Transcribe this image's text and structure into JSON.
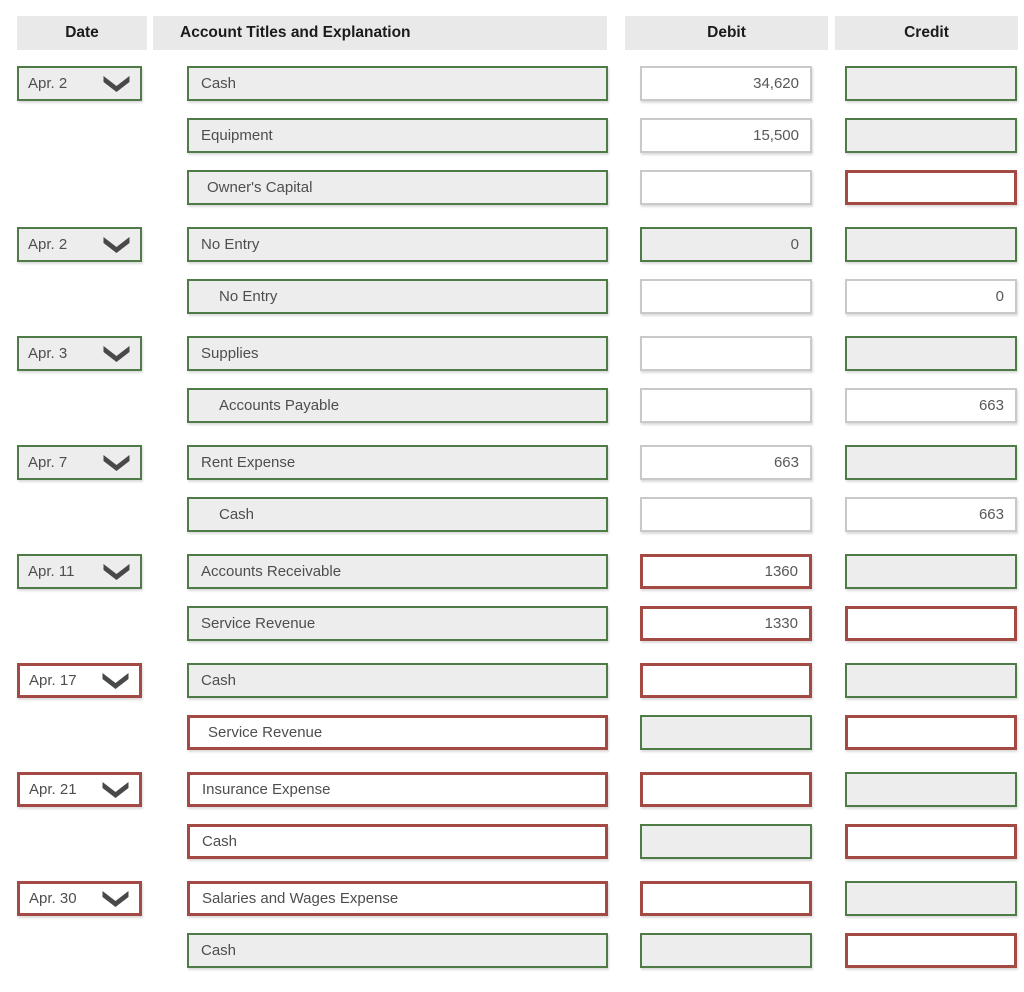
{
  "colors": {
    "correct_green": "#4f7b46",
    "wrong_red": "#a34a45",
    "neutral_border_gray": "#c9c9c9",
    "field_background_gray": "#ededed",
    "header_background": "#e9e9e9",
    "text": "#4e4e4e",
    "header_text": "#1b1b1b"
  },
  "header": {
    "columns": [
      {
        "id": "date",
        "label": "Date"
      },
      {
        "id": "account",
        "label": "Account Titles and Explanation"
      },
      {
        "id": "debit",
        "label": "Debit"
      },
      {
        "id": "credit",
        "label": "Credit"
      }
    ]
  },
  "icons": {
    "date_dropdown": "chevron-down-icon"
  },
  "legend_note_states": {
    "correct": "green border, gray background",
    "wrong": "red border, white background",
    "neutral": "gray border, white background"
  },
  "rows": [
    {
      "date": {
        "label": "Apr. 2",
        "state": "correct"
      },
      "account": {
        "label": "Cash",
        "state": "correct",
        "indent": 0
      },
      "debit": {
        "value": "34,620",
        "state": "neutral"
      },
      "credit": {
        "value": "",
        "state": "correct"
      }
    },
    {
      "date": null,
      "account": {
        "label": "Equipment",
        "state": "correct",
        "indent": 0
      },
      "debit": {
        "value": "15,500",
        "state": "neutral"
      },
      "credit": {
        "value": "",
        "state": "correct"
      }
    },
    {
      "date": null,
      "account": {
        "label": "Owner's Capital",
        "state": "correct",
        "indent": 1
      },
      "debit": {
        "value": "",
        "state": "neutral"
      },
      "credit": {
        "value": "",
        "state": "wrong"
      }
    },
    {
      "date": {
        "label": "Apr. 2",
        "state": "correct"
      },
      "account": {
        "label": "No Entry",
        "state": "correct",
        "indent": 0
      },
      "debit": {
        "value": "0",
        "state": "correct"
      },
      "credit": {
        "value": "",
        "state": "correct"
      }
    },
    {
      "date": null,
      "account": {
        "label": "No Entry",
        "state": "correct",
        "indent": 2
      },
      "debit": {
        "value": "",
        "state": "neutral"
      },
      "credit": {
        "value": "0",
        "state": "neutral"
      }
    },
    {
      "date": {
        "label": "Apr. 3",
        "state": "correct"
      },
      "account": {
        "label": "Supplies",
        "state": "correct",
        "indent": 0
      },
      "debit": {
        "value": "",
        "state": "neutral"
      },
      "credit": {
        "value": "",
        "state": "correct"
      }
    },
    {
      "date": null,
      "account": {
        "label": "Accounts Payable",
        "state": "correct",
        "indent": 2
      },
      "debit": {
        "value": "",
        "state": "neutral"
      },
      "credit": {
        "value": "663",
        "state": "neutral"
      }
    },
    {
      "date": {
        "label": "Apr. 7",
        "state": "correct"
      },
      "account": {
        "label": "Rent Expense",
        "state": "correct",
        "indent": 0
      },
      "debit": {
        "value": "663",
        "state": "neutral"
      },
      "credit": {
        "value": "",
        "state": "correct"
      }
    },
    {
      "date": null,
      "account": {
        "label": "Cash",
        "state": "correct",
        "indent": 2
      },
      "debit": {
        "value": "",
        "state": "neutral"
      },
      "credit": {
        "value": "663",
        "state": "neutral"
      }
    },
    {
      "date": {
        "label": "Apr. 11",
        "state": "correct"
      },
      "account": {
        "label": "Accounts Receivable",
        "state": "correct",
        "indent": 0
      },
      "debit": {
        "value": "1360",
        "state": "wrong"
      },
      "credit": {
        "value": "",
        "state": "correct"
      }
    },
    {
      "date": null,
      "account": {
        "label": "Service Revenue",
        "state": "correct",
        "indent": 0
      },
      "debit": {
        "value": "1330",
        "state": "wrong"
      },
      "credit": {
        "value": "",
        "state": "wrong"
      }
    },
    {
      "date": {
        "label": "Apr. 17",
        "state": "wrong"
      },
      "account": {
        "label": "Cash",
        "state": "correct",
        "indent": 0
      },
      "debit": {
        "value": "",
        "state": "wrong"
      },
      "credit": {
        "value": "",
        "state": "correct"
      }
    },
    {
      "date": null,
      "account": {
        "label": "Service Revenue",
        "state": "wrong",
        "indent": 1
      },
      "debit": {
        "value": "",
        "state": "correct"
      },
      "credit": {
        "value": "",
        "state": "wrong"
      }
    },
    {
      "date": {
        "label": "Apr. 21",
        "state": "wrong"
      },
      "account": {
        "label": "Insurance Expense",
        "state": "wrong",
        "indent": 0
      },
      "debit": {
        "value": "",
        "state": "wrong"
      },
      "credit": {
        "value": "",
        "state": "correct"
      }
    },
    {
      "date": null,
      "account": {
        "label": "Cash",
        "state": "wrong",
        "indent": 0
      },
      "debit": {
        "value": "",
        "state": "correct"
      },
      "credit": {
        "value": "",
        "state": "wrong"
      }
    },
    {
      "date": {
        "label": "Apr. 30",
        "state": "wrong"
      },
      "account": {
        "label": "Salaries and Wages Expense",
        "state": "wrong",
        "indent": 0
      },
      "debit": {
        "value": "",
        "state": "wrong"
      },
      "credit": {
        "value": "",
        "state": "correct"
      }
    },
    {
      "date": null,
      "account": {
        "label": "Cash",
        "state": "correct",
        "indent": 0
      },
      "debit": {
        "value": "",
        "state": "correct"
      },
      "credit": {
        "value": "",
        "state": "wrong"
      }
    }
  ]
}
